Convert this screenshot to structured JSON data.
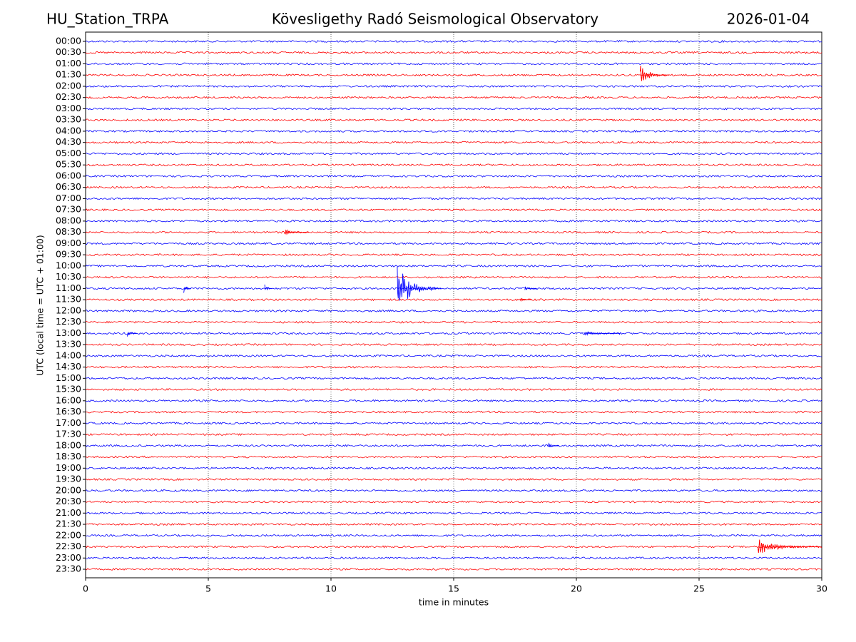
{
  "chart_data": {
    "type": "helicorder",
    "station": "HU_Station_TRPA",
    "title": "Kövesligethy Radó Seismological Observatory",
    "date": "2026-01-04",
    "ylabel": "UTC (local time = UTC + 01:00)",
    "xlabel": "time in minutes",
    "xlim": [
      0,
      30
    ],
    "xticks": [
      0,
      5,
      10,
      15,
      20,
      25,
      30
    ],
    "grid": true,
    "colors": [
      "#0000ff",
      "#ff0000"
    ],
    "categories": [
      "00:00",
      "00:30",
      "01:00",
      "01:30",
      "02:00",
      "02:30",
      "03:00",
      "03:30",
      "04:00",
      "04:30",
      "05:00",
      "05:30",
      "06:00",
      "06:30",
      "07:00",
      "07:30",
      "08:00",
      "08:30",
      "09:00",
      "09:30",
      "10:00",
      "10:30",
      "11:00",
      "11:30",
      "12:00",
      "12:30",
      "13:00",
      "13:30",
      "14:00",
      "14:30",
      "15:00",
      "15:30",
      "16:00",
      "16:30",
      "17:00",
      "17:30",
      "18:00",
      "18:30",
      "19:00",
      "19:30",
      "20:00",
      "20:30",
      "21:00",
      "21:30",
      "22:00",
      "22:30",
      "23:00",
      "23:30"
    ],
    "events": [
      {
        "row": "01:30",
        "start": 22.6,
        "duration": 1.2,
        "amplitude": 0.9
      },
      {
        "row": "08:30",
        "start": 8.1,
        "duration": 1.0,
        "amplitude": 0.3
      },
      {
        "row": "11:00",
        "start": 4.0,
        "duration": 0.3,
        "amplitude": 0.6
      },
      {
        "row": "11:00",
        "start": 7.3,
        "duration": 0.3,
        "amplitude": 0.5
      },
      {
        "row": "11:00",
        "start": 12.7,
        "duration": 1.8,
        "amplitude": 2.2
      },
      {
        "row": "11:00",
        "start": 17.9,
        "duration": 0.5,
        "amplitude": 0.3
      },
      {
        "row": "11:30",
        "start": 17.7,
        "duration": 0.5,
        "amplitude": 0.2
      },
      {
        "row": "13:00",
        "start": 1.7,
        "duration": 0.4,
        "amplitude": 0.3
      },
      {
        "row": "13:00",
        "start": 20.3,
        "duration": 1.5,
        "amplitude": 0.25
      },
      {
        "row": "18:00",
        "start": 18.8,
        "duration": 0.5,
        "amplitude": 0.4
      },
      {
        "row": "22:30",
        "start": 27.4,
        "duration": 2.6,
        "amplitude": 0.7
      }
    ]
  }
}
